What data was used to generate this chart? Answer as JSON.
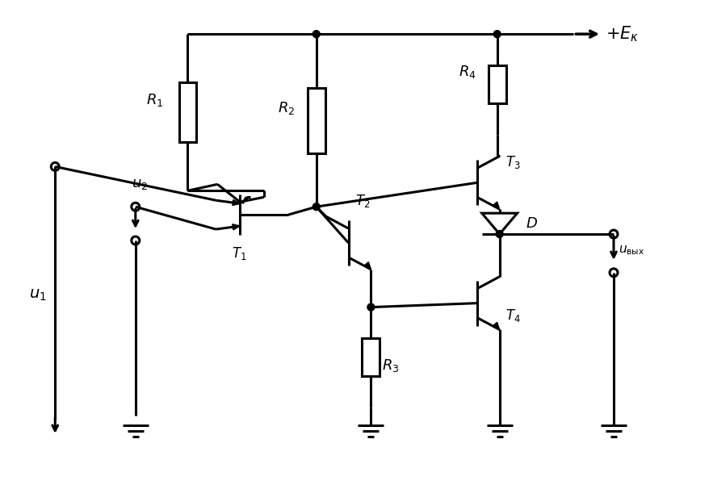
{
  "bg_color": "#ffffff",
  "lw": 2.2,
  "fig_w": 8.83,
  "fig_h": 5.96,
  "dpi": 100
}
